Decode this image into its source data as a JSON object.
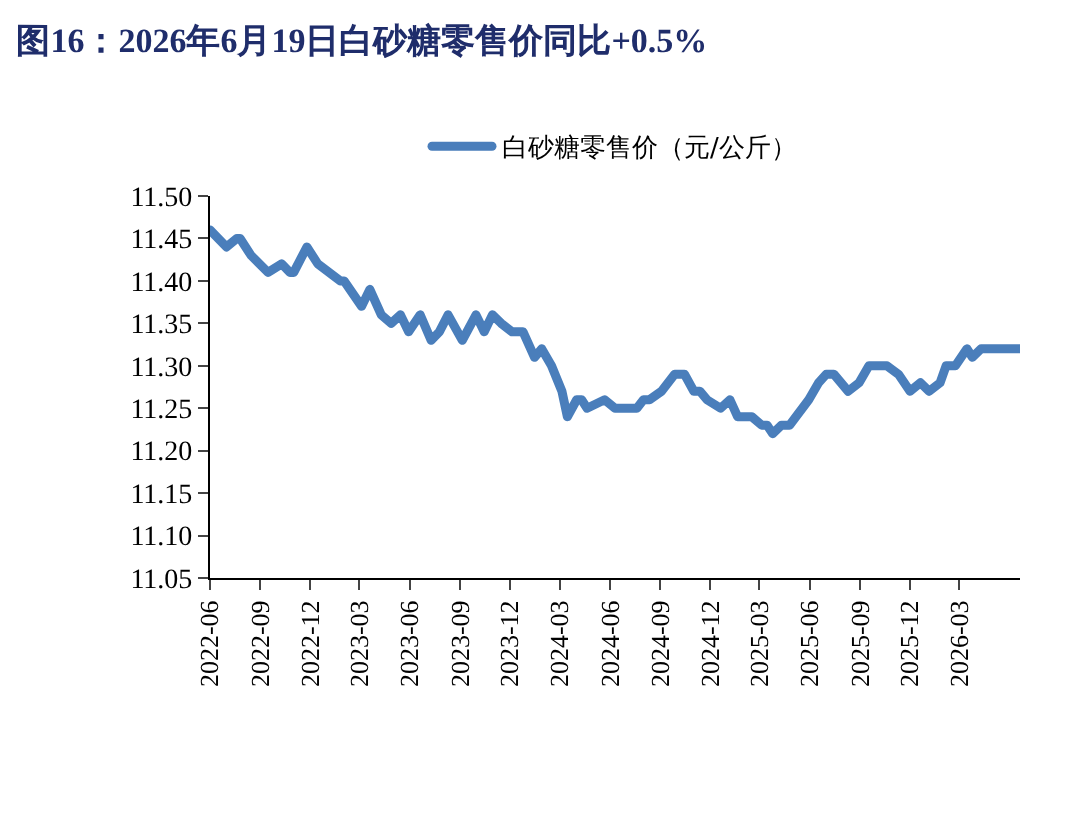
{
  "chart_data": {
    "type": "line",
    "title": "图16：2026年6月19日白砂糖零售价同比+0.5%",
    "x": [
      "2022-06-01",
      "2022-07-01",
      "2022-07-20",
      "2022-07-26",
      "2022-08-15",
      "2022-09-15",
      "2022-10-10",
      "2022-10-25",
      "2022-11-01",
      "2022-11-25",
      "2022-12-15",
      "2023-01-25",
      "2023-02-01",
      "2023-03-05",
      "2023-03-20",
      "2023-04-10",
      "2023-04-28",
      "2023-05-15",
      "2023-05-30",
      "2023-06-20",
      "2023-07-10",
      "2023-07-25",
      "2023-08-10",
      "2023-09-05",
      "2023-09-30",
      "2023-10-15",
      "2023-10-30",
      "2023-11-15",
      "2023-12-05",
      "2023-12-25",
      "2024-01-15",
      "2024-01-28",
      "2024-02-15",
      "2024-03-05",
      "2024-03-15",
      "2024-04-01",
      "2024-04-10",
      "2024-04-20",
      "2024-05-22",
      "2024-06-10",
      "2024-07-20",
      "2024-08-01",
      "2024-08-12",
      "2024-09-03",
      "2024-09-27",
      "2024-10-15",
      "2024-11-01",
      "2024-11-12",
      "2024-11-25",
      "2024-12-20",
      "2025-01-06",
      "2025-01-20",
      "2025-02-15",
      "2025-03-05",
      "2025-03-15",
      "2025-03-25",
      "2025-04-10",
      "2025-04-25",
      "2025-05-30",
      "2025-06-17",
      "2025-07-01",
      "2025-07-15",
      "2025-08-10",
      "2025-08-30",
      "2025-09-17",
      "2025-10-20",
      "2025-11-10",
      "2025-12-01",
      "2025-12-20",
      "2026-01-05",
      "2026-01-25",
      "2026-02-05",
      "2026-02-22",
      "2026-03-15",
      "2026-03-25",
      "2026-04-10",
      "2026-06-19"
    ],
    "series": [
      {
        "name": "白砂糖零售价（元/公斤）",
        "color": "#4a7ebb",
        "values": [
          11.46,
          11.44,
          11.45,
          11.45,
          11.43,
          11.41,
          11.42,
          11.41,
          11.41,
          11.44,
          11.42,
          11.4,
          11.4,
          11.37,
          11.39,
          11.36,
          11.35,
          11.36,
          11.34,
          11.36,
          11.33,
          11.34,
          11.36,
          11.33,
          11.36,
          11.34,
          11.36,
          11.35,
          11.34,
          11.34,
          11.31,
          11.32,
          11.3,
          11.27,
          11.24,
          11.26,
          11.26,
          11.25,
          11.26,
          11.25,
          11.25,
          11.26,
          11.26,
          11.27,
          11.29,
          11.29,
          11.27,
          11.27,
          11.26,
          11.25,
          11.26,
          11.24,
          11.24,
          11.23,
          11.23,
          11.22,
          11.23,
          11.23,
          11.26,
          11.28,
          11.29,
          11.29,
          11.27,
          11.28,
          11.3,
          11.3,
          11.29,
          11.27,
          11.28,
          11.27,
          11.28,
          11.3,
          11.3,
          11.32,
          11.31,
          11.32,
          11.32
        ]
      }
    ],
    "xlim": [
      "2022-06-01",
      "2026-06-20"
    ],
    "xticks": [
      "2022-06",
      "2022-09",
      "2022-12",
      "2023-03",
      "2023-06",
      "2023-09",
      "2023-12",
      "2024-03",
      "2024-06",
      "2024-09",
      "2024-12",
      "2025-03",
      "2025-06",
      "2025-09",
      "2025-12",
      "2026-03"
    ],
    "ylim": [
      11.05,
      11.5
    ],
    "yticks": [
      {
        "value": 11.05,
        "label": "11.05"
      },
      {
        "value": 11.1,
        "label": "11.10"
      },
      {
        "value": 11.15,
        "label": "11.15"
      },
      {
        "value": 11.2,
        "label": "11.20"
      },
      {
        "value": 11.25,
        "label": "11.25"
      },
      {
        "value": 11.3,
        "label": "11.30"
      },
      {
        "value": 11.35,
        "label": "11.35"
      },
      {
        "value": 11.4,
        "label": "11.40"
      },
      {
        "value": 11.45,
        "label": "11.45"
      },
      {
        "value": 11.5,
        "label": "11.50"
      }
    ],
    "grid": false,
    "legend": "top",
    "marker": "none",
    "line_style": "solid"
  }
}
